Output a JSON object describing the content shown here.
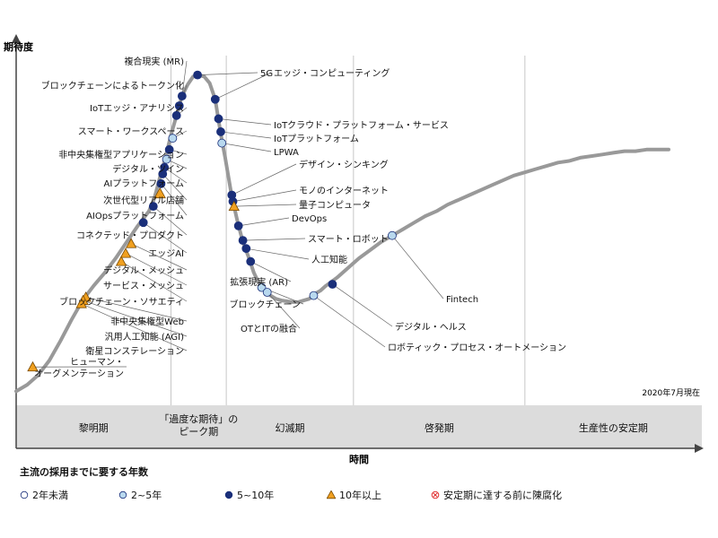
{
  "chart_data": {
    "type": "hype-cycle",
    "ylabel": "期待度",
    "xlabel": "時間",
    "as_of": "2020年7月現在",
    "phases": [
      {
        "label": "黎明期",
        "x_start": 0,
        "x_end": 28
      },
      {
        "label": "「過度な期待」の\nピーク期",
        "x_start": 28,
        "x_end": 38
      },
      {
        "label": "幻滅期",
        "x_start": 38,
        "x_end": 61
      },
      {
        "label": "啓発期",
        "x_start": 61,
        "x_end": 92
      },
      {
        "label": "生産性の安定期",
        "x_start": 92,
        "x_end": 124
      }
    ],
    "curve": [
      [
        0,
        2
      ],
      [
        2,
        6
      ],
      [
        4,
        12
      ],
      [
        6,
        21
      ],
      [
        8,
        33
      ],
      [
        10,
        46
      ],
      [
        12,
        58
      ],
      [
        14,
        67
      ],
      [
        16,
        75
      ],
      [
        18,
        84
      ],
      [
        20,
        94
      ],
      [
        22,
        104
      ],
      [
        24,
        113
      ],
      [
        25,
        121
      ],
      [
        26,
        134
      ],
      [
        27,
        146
      ],
      [
        28,
        160
      ],
      [
        29,
        172
      ],
      [
        30,
        184
      ],
      [
        31,
        191
      ],
      [
        32,
        196
      ],
      [
        33,
        197
      ],
      [
        34,
        196
      ],
      [
        35,
        192
      ],
      [
        36,
        182
      ],
      [
        36.6,
        169
      ],
      [
        37.2,
        157
      ],
      [
        37.8,
        146
      ],
      [
        38.4,
        134
      ],
      [
        39,
        122
      ],
      [
        40,
        107
      ],
      [
        41,
        94
      ],
      [
        42,
        85
      ],
      [
        43,
        75
      ],
      [
        44,
        68
      ],
      [
        45,
        64
      ],
      [
        46,
        61
      ],
      [
        47,
        59
      ],
      [
        48,
        58
      ],
      [
        49,
        57.5
      ],
      [
        50,
        57
      ],
      [
        51,
        57
      ],
      [
        52,
        58
      ],
      [
        53,
        59
      ],
      [
        54,
        62
      ],
      [
        55,
        64
      ],
      [
        56,
        67
      ],
      [
        58,
        72
      ],
      [
        60,
        78
      ],
      [
        62,
        84
      ],
      [
        64,
        89
      ],
      [
        66,
        94
      ],
      [
        68,
        98
      ],
      [
        70,
        102
      ],
      [
        72,
        106
      ],
      [
        74,
        110
      ],
      [
        76,
        113
      ],
      [
        78,
        117
      ],
      [
        80,
        120
      ],
      [
        82,
        123
      ],
      [
        84,
        126
      ],
      [
        86,
        129
      ],
      [
        88,
        132
      ],
      [
        90,
        135
      ],
      [
        92,
        137
      ],
      [
        94,
        139
      ],
      [
        96,
        141
      ],
      [
        98,
        143
      ],
      [
        100,
        144
      ],
      [
        102,
        146
      ],
      [
        104,
        147
      ],
      [
        106,
        148
      ],
      [
        108,
        149
      ],
      [
        110,
        150
      ],
      [
        112,
        150
      ],
      [
        114,
        151
      ],
      [
        116,
        151
      ],
      [
        118,
        151
      ]
    ],
    "points": [
      {
        "label": "複合現実 (MR)",
        "x": 30,
        "y": 184,
        "category": "5~10年",
        "side": "left"
      },
      {
        "label": "ブロックチェーンによるトークン化",
        "x": 29.5,
        "y": 178,
        "category": "5~10年",
        "side": "left"
      },
      {
        "label": "IoTエッジ・アナリシス",
        "x": 29,
        "y": 172,
        "category": "5~10年",
        "side": "left"
      },
      {
        "label": "スマート・ワークスペース",
        "x": 28.3,
        "y": 158,
        "category": "2~5年",
        "side": "left"
      },
      {
        "label": "非中央集権型アプリケーション",
        "x": 27.7,
        "y": 151,
        "category": "5~10年",
        "side": "left"
      },
      {
        "label": "デジタル・ツイン",
        "x": 27.2,
        "y": 145,
        "category": "2~5年",
        "side": "left"
      },
      {
        "label": "AIプラットフォーム",
        "x": 26.8,
        "y": 140,
        "category": "5~10年",
        "side": "left"
      },
      {
        "label": "次世代型リアル店舗",
        "x": 26.5,
        "y": 136,
        "category": "5~10年",
        "side": "left"
      },
      {
        "label": "AIOpsプラットフォーム",
        "x": 26.2,
        "y": 130,
        "category": "5~10年",
        "side": "left"
      },
      {
        "label": "AIOpsプラットフォーム",
        "x": 26,
        "y": 124,
        "category": "10年以上",
        "side": "left"
      },
      {
        "label": "コネクテッド・プロダクト",
        "x": 24.8,
        "y": 116,
        "category": "5~10年",
        "side": "left"
      },
      {
        "label": "エッジAI",
        "x": 23,
        "y": 106,
        "category": "5~10年",
        "side": "left"
      },
      {
        "label": "デジタル・メッシュ",
        "x": 20.8,
        "y": 93,
        "category": "10年以上",
        "side": "left"
      },
      {
        "label": "サービス・メッシュ",
        "x": 19.8,
        "y": 87,
        "category": "10年以上",
        "side": "left"
      },
      {
        "label": "ブロックチェーン・ソサエティ",
        "x": 19,
        "y": 82,
        "category": "10年以上",
        "side": "left"
      },
      {
        "label": "非中央集権型Web",
        "x": 12.6,
        "y": 60,
        "category": "10年以上",
        "side": "left"
      },
      {
        "label": "汎用人工知能 (AGI)",
        "x": 12.1,
        "y": 58,
        "category": "10年以上",
        "side": "left"
      },
      {
        "label": "衛星コンステレーション",
        "x": 11.8,
        "y": 56,
        "category": "10年以上",
        "side": "left"
      },
      {
        "label": "ヒューマン・\nオーグメンテーション",
        "x": 3,
        "y": 17,
        "category": "10年以上",
        "side": "left"
      },
      {
        "label": "5G",
        "x": 32.8,
        "y": 197,
        "category": "5~10年",
        "side": "right"
      },
      {
        "label": "エッジ・コンピューティング",
        "x": 36,
        "y": 182,
        "category": "5~10年",
        "side": "right"
      },
      {
        "label": "IoTクラウド・プラットフォーム・サービス",
        "x": 36.6,
        "y": 170,
        "category": "5~10年",
        "side": "right"
      },
      {
        "label": "IoTプラットフォーム",
        "x": 37,
        "y": 162,
        "category": "5~10年",
        "side": "right"
      },
      {
        "label": "LPWA",
        "x": 37.2,
        "y": 155,
        "category": "2~5年",
        "side": "right"
      },
      {
        "label": "デザイン・シンキング",
        "x": 39,
        "y": 123,
        "category": "5~10年",
        "side": "right"
      },
      {
        "label": "モノのインターネット",
        "x": 39.2,
        "y": 119,
        "category": "5~10年",
        "side": "right"
      },
      {
        "label": "量子コンピュータ",
        "x": 39.4,
        "y": 116,
        "category": "10年以上",
        "side": "right"
      },
      {
        "label": "DevOps",
        "x": 40.2,
        "y": 104,
        "category": "5~10年",
        "side": "right"
      },
      {
        "label": "スマート・ロボット",
        "x": 41,
        "y": 95,
        "category": "5~10年",
        "side": "right"
      },
      {
        "label": "人工知能",
        "x": 41.6,
        "y": 90,
        "category": "5~10年",
        "side": "right"
      },
      {
        "label": "拡張現実 (AR)",
        "x": 42.4,
        "y": 82,
        "category": "5~10年",
        "side": "left"
      },
      {
        "label": "ブロックチェーン",
        "x": 44.4,
        "y": 66,
        "category": "2~5年",
        "side": "left"
      },
      {
        "label": "OTとITの融合",
        "x": 45.4,
        "y": 63,
        "category": "2~5年",
        "side": "left"
      },
      {
        "label": "ロボティック・プロセス・オートメーション",
        "x": 53.8,
        "y": 61,
        "category": "2~5年",
        "side": "right"
      },
      {
        "label": "デジタル・ヘルス",
        "x": 57.2,
        "y": 68,
        "category": "5~10年",
        "side": "right"
      },
      {
        "label": "Fintech",
        "x": 68,
        "y": 98,
        "category": "2~5年",
        "side": "right"
      }
    ],
    "ylim": [
      0,
      220
    ],
    "xlim": [
      0,
      124
    ]
  },
  "legend": {
    "title": "主流の採用までに要する年数",
    "items": [
      {
        "label": "2年未満",
        "category": "2年未満"
      },
      {
        "label": "2~5年",
        "category": "2~5年"
      },
      {
        "label": "5~10年",
        "category": "5~10年"
      },
      {
        "label": "10年以上",
        "category": "10年以上"
      },
      {
        "label": "安定期に達する前に陳腐化",
        "category": "陳腐化"
      }
    ]
  },
  "colors": {
    "curve": "#999999",
    "phase_band": "#dcdcdc",
    "divider": "#c8c8c8",
    "less2": "#ffffff",
    "y2to5": "#b8d8ee",
    "y5to10": "#1a2f7a",
    "y10plus": "#f0a020",
    "obsolete": "#e03030"
  }
}
